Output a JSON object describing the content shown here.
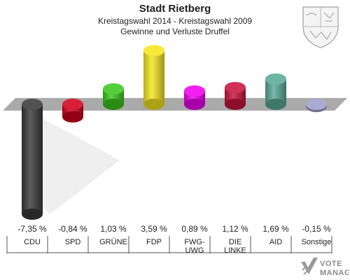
{
  "header": {
    "title": "Stadt Rietberg",
    "subtitle": "Kreistagswahl 2014 - Kreistagswahl 2009",
    "subtitle2": "Gewinne und Verluste Druffel"
  },
  "logo": {
    "line1": "VOTE",
    "line2": "MANAGER"
  },
  "chart_data": {
    "type": "bar",
    "categories": [
      "CDU",
      "SPD",
      "GRÜNE",
      "FDP",
      "FWG-UWG",
      "DIE LINKE",
      "AID",
      "Sonstige"
    ],
    "category_lines": [
      [
        "CDU"
      ],
      [
        "SPD"
      ],
      [
        "GRÜNE"
      ],
      [
        "FDP"
      ],
      [
        "FWG-",
        "UWG"
      ],
      [
        "DIE",
        "LINKE"
      ],
      [
        "AID"
      ],
      [
        "Sonstige"
      ]
    ],
    "values": [
      -7.35,
      -0.84,
      1.03,
      3.59,
      0.89,
      1.12,
      1.69,
      -0.15
    ],
    "labels": [
      "-7,35 %",
      "-0,84 %",
      "1,03 %",
      "3,59 %",
      "0,89 %",
      "1,12 %",
      "1,69 %",
      "-0,15 %"
    ],
    "colors": [
      "#3a3a3a",
      "#d2001e",
      "#3cc81e",
      "#f5e61e",
      "#f000f0",
      "#c8143c",
      "#5aaa96",
      "#9ea0cc"
    ],
    "title": "Stadt Rietberg",
    "xlabel": "",
    "ylabel": ""
  }
}
